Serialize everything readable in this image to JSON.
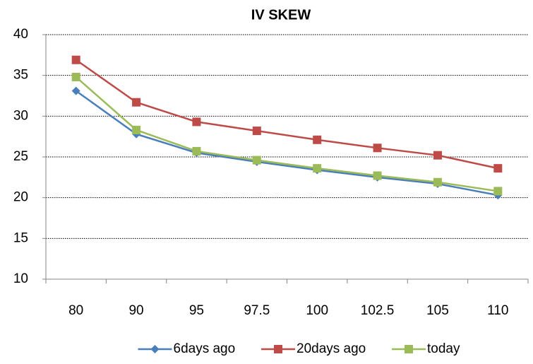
{
  "chart_data": {
    "type": "line",
    "title": "IV SKEW",
    "categories": [
      "80",
      "90",
      "95",
      "97.5",
      "100",
      "102.5",
      "105",
      "110"
    ],
    "series": [
      {
        "name": "6days ago",
        "color": "#4a7ebb",
        "marker": "diamond",
        "values": [
          33.1,
          27.8,
          25.5,
          24.4,
          23.4,
          22.5,
          21.7,
          20.3
        ]
      },
      {
        "name": "20days ago",
        "color": "#be4b48",
        "marker": "square",
        "values": [
          36.9,
          31.7,
          29.3,
          28.2,
          27.1,
          26.1,
          25.2,
          23.6
        ]
      },
      {
        "name": "today",
        "color": "#9bbb59",
        "marker": "square",
        "values": [
          34.8,
          28.3,
          25.7,
          24.6,
          23.6,
          22.7,
          21.9,
          20.8
        ]
      }
    ],
    "ylim": [
      10,
      40
    ],
    "yticks": [
      10,
      15,
      20,
      25,
      30,
      35,
      40
    ],
    "grid": true,
    "legend": "bottom"
  }
}
